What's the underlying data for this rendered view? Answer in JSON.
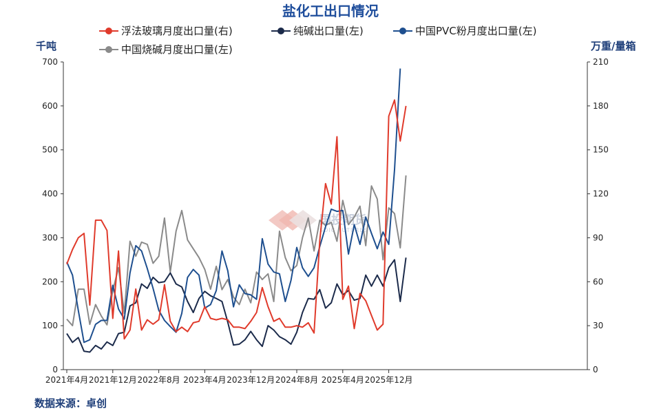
{
  "chart_data": {
    "type": "line",
    "title": "盐化工出口情况",
    "source": "数据来源：卓创",
    "watermark": {
      "brand": "国投期货",
      "sub": "SDIC FUTURES"
    },
    "left_unit": "千吨",
    "right_unit": "万重/量箱",
    "left_axis": {
      "min": 0,
      "max": 700,
      "ticks": [
        0,
        100,
        200,
        300,
        400,
        500,
        600,
        700
      ]
    },
    "right_axis": {
      "min": 0,
      "max": 210,
      "ticks": [
        0,
        30,
        60,
        90,
        120,
        150,
        180,
        210
      ]
    },
    "legend_position": "top",
    "x_start": "2021-04",
    "x_tick_labels": [
      "2021年4月",
      "2021年12月",
      "2022年8月",
      "2023年4月",
      "2023年12月",
      "2024年8月",
      "2025年4月",
      "2025年12月"
    ],
    "x_tick_index": [
      0,
      8,
      16,
      24,
      32,
      40,
      48,
      56
    ],
    "series": [
      {
        "name": "浮法玻璃月度出口量(右)",
        "axis": "right",
        "color": "#e03a2b",
        "values": [
          72,
          82,
          90,
          93,
          44,
          102,
          102,
          95,
          35,
          81,
          21,
          27,
          55,
          27,
          34,
          31,
          34,
          58,
          33,
          26,
          29,
          26,
          32,
          33,
          43,
          35,
          34,
          35,
          34,
          29,
          29,
          28,
          33,
          39,
          56,
          43,
          33,
          35,
          29,
          29,
          30,
          29,
          32,
          25,
          88,
          127,
          113,
          159,
          48,
          57,
          28,
          52,
          47,
          37,
          27,
          31,
          173,
          184,
          156,
          180
        ]
      },
      {
        "name": "纯碱出口量(左)",
        "axis": "left",
        "color": "#1b2a4a",
        "values": [
          82,
          62,
          73,
          42,
          40,
          55,
          47,
          63,
          55,
          82,
          85,
          145,
          152,
          195,
          185,
          210,
          198,
          200,
          220,
          195,
          188,
          155,
          130,
          162,
          178,
          168,
          162,
          155,
          108,
          56,
          58,
          68,
          87,
          68,
          53,
          100,
          90,
          75,
          68,
          58,
          85,
          130,
          162,
          160,
          182,
          140,
          152,
          195,
          170,
          180,
          158,
          162,
          215,
          190,
          215,
          190,
          232,
          250,
          155,
          255
        ]
      },
      {
        "name": "中国PVC粉月度出口量(左)",
        "axis": "left",
        "color": "#1e4f8f",
        "values": [
          245,
          215,
          135,
          62,
          68,
          103,
          112,
          112,
          192,
          138,
          115,
          220,
          282,
          270,
          230,
          185,
          135,
          112,
          98,
          85,
          128,
          210,
          228,
          215,
          140,
          148,
          180,
          270,
          225,
          143,
          193,
          173,
          170,
          160,
          298,
          240,
          222,
          218,
          155,
          203,
          278,
          232,
          212,
          232,
          280,
          325,
          365,
          360,
          362,
          263,
          330,
          285,
          347,
          310,
          275,
          313,
          285,
          455,
          685
        ]
      },
      {
        "name": "中国烧碱月度出口量(左)",
        "axis": "left",
        "color": "#8a8a8a",
        "values": [
          115,
          100,
          183,
          183,
          103,
          148,
          122,
          102,
          180,
          232,
          128,
          292,
          258,
          290,
          285,
          242,
          258,
          345,
          222,
          315,
          362,
          295,
          275,
          255,
          228,
          183,
          235,
          182,
          205,
          165,
          148,
          183,
          152,
          222,
          205,
          218,
          155,
          315,
          255,
          225,
          237,
          300,
          345,
          270,
          340,
          328,
          335,
          292,
          385,
          330,
          347,
          372,
          282,
          418,
          388,
          250,
          368,
          355,
          277,
          442
        ]
      }
    ]
  }
}
